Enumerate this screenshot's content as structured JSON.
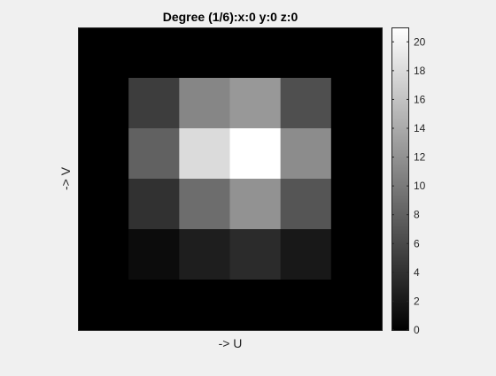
{
  "chart_data": {
    "type": "heatmap",
    "title": "Degree (1/6):x:0 y:0 z:0",
    "xlabel": "-> U",
    "ylabel": "-> V",
    "grid": false,
    "colormap": "gray",
    "clim": [
      0,
      21
    ],
    "colorbar": {
      "placement": "right",
      "ticks": [
        0,
        2,
        4,
        6,
        8,
        10,
        12,
        14,
        16,
        18,
        20
      ],
      "tick_labels": [
        "0",
        "2",
        "4",
        "6",
        "8",
        "10",
        "12",
        "14",
        "16",
        "18",
        "20"
      ]
    },
    "rows": 6,
    "cols": 6,
    "values": [
      [
        0,
        0,
        0,
        0,
        0,
        0
      ],
      [
        0,
        5,
        11,
        12.5,
        6.5,
        0
      ],
      [
        0,
        8,
        18,
        21,
        11.5,
        0
      ],
      [
        0,
        4,
        9,
        12,
        7,
        0
      ],
      [
        0,
        1,
        2.5,
        3.5,
        2,
        0
      ],
      [
        0,
        0,
        0,
        0,
        0,
        0
      ]
    ]
  }
}
